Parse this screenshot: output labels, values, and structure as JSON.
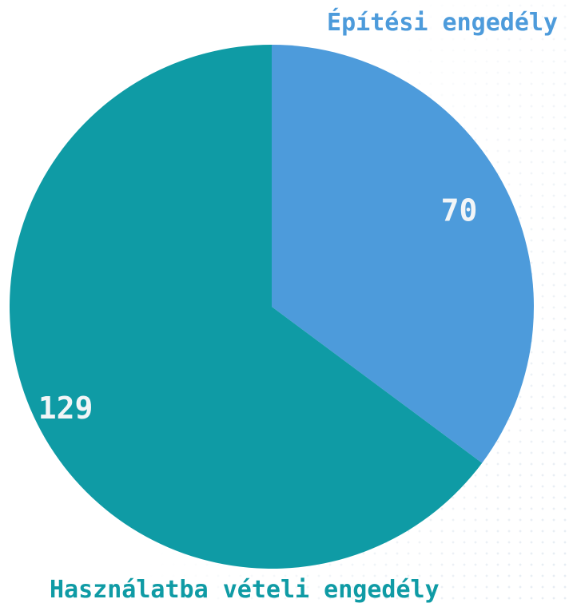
{
  "chart_data": {
    "type": "pie",
    "slices": [
      {
        "label": "Építési engedély",
        "value": 70,
        "color": "#4d9bdb"
      },
      {
        "label": "Használatba vételi engedély",
        "value": 129,
        "color": "#0f9ba5"
      }
    ],
    "title": "",
    "legend": "none"
  }
}
